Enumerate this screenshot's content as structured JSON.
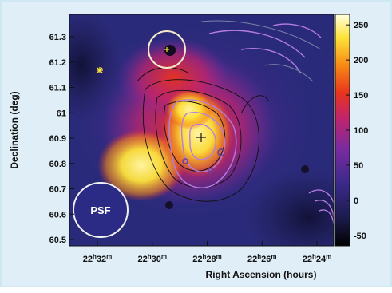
{
  "figure": {
    "ylabel": "Declination (deg)",
    "xlabel": "Right Ascension (hours)",
    "psf_label": "PSF",
    "colorscale": {
      "ticks": [
        "250",
        "200",
        "150",
        "100",
        "50",
        "0",
        "-50"
      ],
      "range": [
        -65,
        265
      ],
      "colors": [
        "#000000",
        "#1b1b4d",
        "#3a2a8a",
        "#7a2ba0",
        "#c0246e",
        "#e8331e",
        "#f78a15",
        "#fde33a",
        "#ffffe0"
      ]
    },
    "dec_ticks": [
      "61.3",
      "61.2",
      "61.1",
      "61",
      "60.9",
      "60.8",
      "60.7",
      "60.6",
      "60.5"
    ],
    "ra_ticks": [
      {
        "h": "22",
        "m": "32"
      },
      {
        "h": "22",
        "m": "30"
      },
      {
        "h": "22",
        "m": "28"
      },
      {
        "h": "22",
        "m": "26"
      },
      {
        "h": "22",
        "m": "24"
      }
    ],
    "ra_units": {
      "h": "h",
      "m": "m"
    }
  }
}
